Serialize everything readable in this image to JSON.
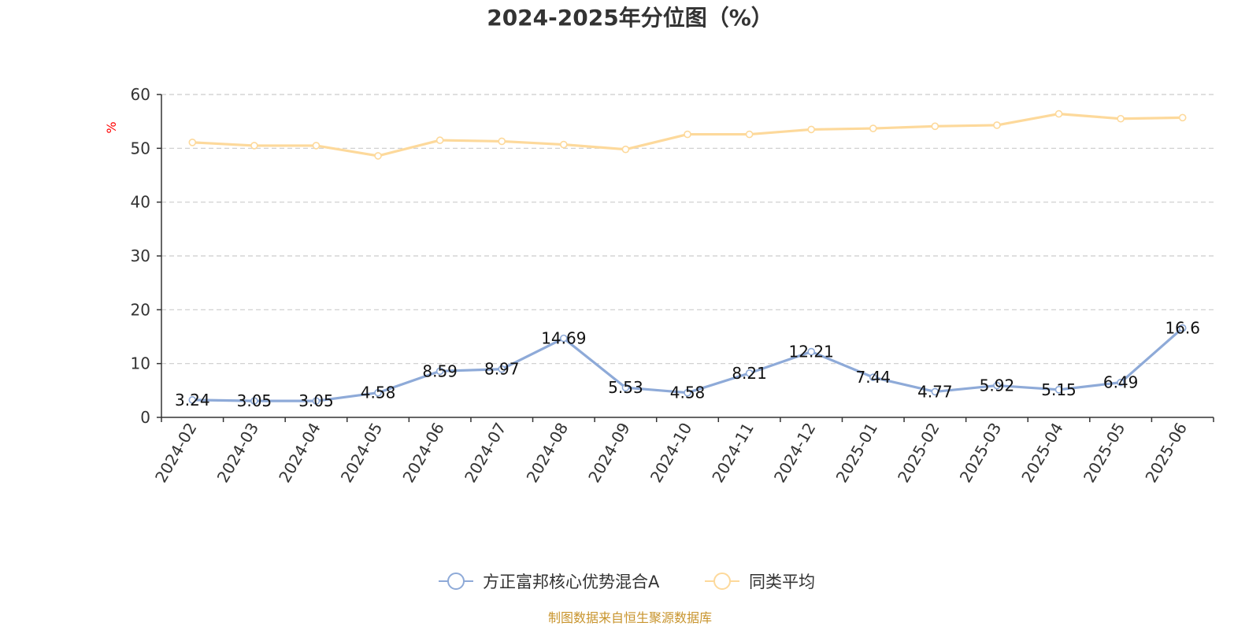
{
  "chart_data": {
    "type": "line",
    "title": "2024-2025年分位图（%）",
    "ylabel": "%",
    "ylim": [
      0,
      60
    ],
    "yticks": [
      "0",
      "10",
      "20",
      "30",
      "40",
      "50",
      "60"
    ],
    "grid": true,
    "legend_position": "bottom",
    "categories": [
      "2024-02",
      "2024-03",
      "2024-04",
      "2024-05",
      "2024-06",
      "2024-07",
      "2024-08",
      "2024-09",
      "2024-10",
      "2024-11",
      "2024-12",
      "2025-01",
      "2025-02",
      "2025-03",
      "2025-04",
      "2025-05",
      "2025-06"
    ],
    "series": [
      {
        "name": "方正富邦核心优势混合A",
        "color": "#8eaad8",
        "values": [
          3.24,
          3.05,
          3.05,
          4.58,
          8.59,
          8.97,
          14.69,
          5.53,
          4.58,
          8.21,
          12.21,
          7.44,
          4.77,
          5.92,
          5.15,
          6.49,
          16.6
        ],
        "labels": [
          "3.24",
          "3.05",
          "3.05",
          "4.58",
          "8.59",
          "8.97",
          "14.69",
          "5.53",
          "4.58",
          "8.21",
          "12.21",
          "7.44",
          "4.77",
          "5.92",
          "5.15",
          "6.49",
          "16.6"
        ]
      },
      {
        "name": "同类平均",
        "color": "#fdd99b",
        "values": [
          51.1,
          50.5,
          50.5,
          48.6,
          51.5,
          51.3,
          50.7,
          49.8,
          52.6,
          52.6,
          53.5,
          53.7,
          54.1,
          54.3,
          56.4,
          55.5,
          55.7
        ]
      }
    ],
    "source": "制图数据来自恒生聚源数据库",
    "colors": {
      "axis": "#333333",
      "grid": "#cccccc",
      "unit": "#ff0000",
      "source": "#c8942d"
    }
  }
}
